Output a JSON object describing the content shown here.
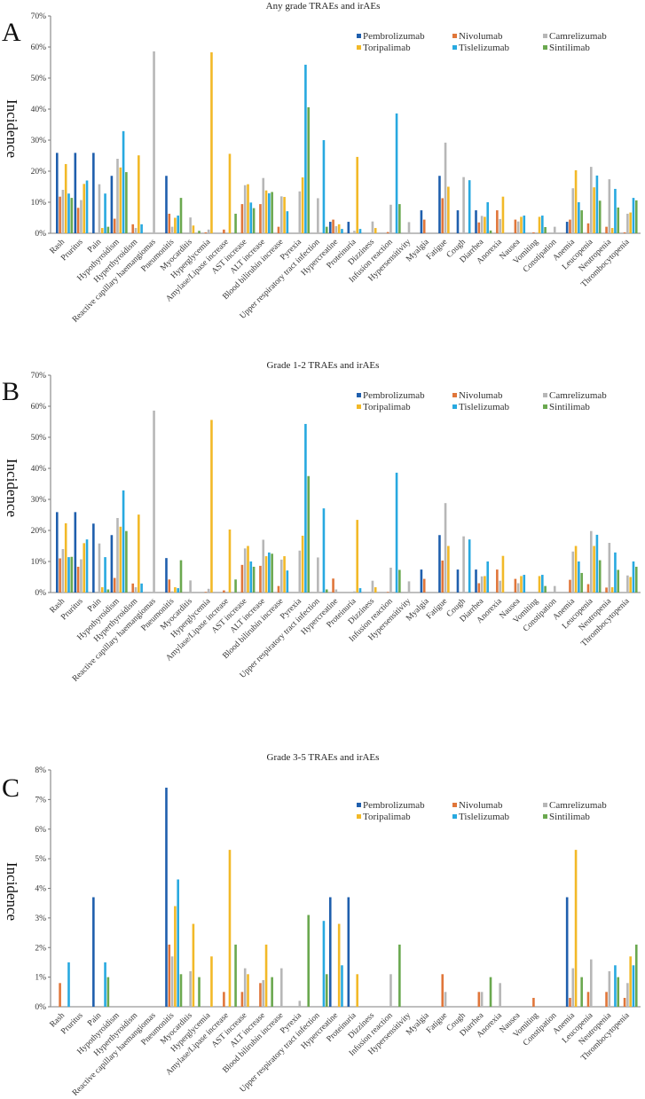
{
  "chart_data": [
    {
      "type": "bar",
      "panel": "A",
      "title": "Any grade TRAEs and irAEs",
      "xlabel": "",
      "ylabel": "Incidence",
      "ylim": [
        0,
        70
      ],
      "yticks": [
        "0%",
        "10%",
        "20%",
        "30%",
        "40%",
        "50%",
        "60%",
        "70%"
      ],
      "grid": false,
      "legend_position": "top-right",
      "categories": [
        "Rash",
        "Pruritus",
        "Pain",
        "Hypothyroidism",
        "Hyperthyroidism",
        "Reactive capillary haemangiomas",
        "Pneumonitis",
        "Myocarditis",
        "Hyperglycemia",
        "Amylase/Lipase increase",
        "AST increase",
        "ALT increase",
        "Blood bilirubin increase",
        "Pyrexia",
        "Upper respiratory tract infection",
        "Hypercreatine",
        "Proteinuria",
        "Dizziness",
        "Infusion reaction",
        "Hypersensitivity",
        "Myalgia",
        "Fatigue",
        "Cough",
        "Diarrhea",
        "Anorexia",
        "Nausea",
        "Vomiting",
        "Constipation",
        "Anemia",
        "Leucopenia",
        "Neutropenia",
        "Thrombocytopenia"
      ],
      "series": [
        {
          "name": "Pembrolizumab",
          "color": "#1f5fad",
          "values": [
            25.9,
            25.9,
            25.9,
            18.5,
            0,
            0,
            18.5,
            0,
            0,
            0,
            0,
            0,
            0,
            0,
            0,
            3.7,
            3.7,
            0,
            0,
            0,
            7.4,
            18.5,
            7.4,
            7.4,
            0,
            0,
            0,
            0,
            3.7,
            0,
            0,
            0
          ]
        },
        {
          "name": "Nivolumab",
          "color": "#e0763a",
          "values": [
            11.8,
            8.2,
            0,
            4.7,
            2.9,
            0,
            6.3,
            0,
            0.3,
            1.2,
            9.4,
            9.4,
            2.1,
            0,
            0,
            4.4,
            0,
            0,
            0.4,
            0,
            4.4,
            11.3,
            0,
            3.5,
            7.4,
            4.4,
            0.3,
            0,
            4.4,
            3.2,
            2.1,
            0.3
          ]
        },
        {
          "name": "Camrelizumab",
          "color": "#b7b7b7",
          "values": [
            14.0,
            10.7,
            15.8,
            24.0,
            1.7,
            58.6,
            2.1,
            5.1,
            1.2,
            0,
            15.5,
            17.8,
            11.9,
            13.5,
            11.3,
            2.3,
            0.8,
            3.8,
            9.2,
            3.6,
            0,
            29.2,
            18.1,
            5.6,
            4.6,
            3.8,
            0,
            2.1,
            14.5,
            21.4,
            17.4,
            6.3
          ]
        },
        {
          "name": "Toripalimab",
          "color": "#f2b928",
          "values": [
            22.3,
            15.9,
            1.7,
            21.2,
            25.1,
            0,
            5.0,
            2.5,
            58.3,
            25.6,
            15.8,
            13.8,
            11.7,
            18.0,
            0,
            2.9,
            24.6,
            1.7,
            0,
            0,
            0,
            15.0,
            0,
            5.3,
            11.8,
            5.3,
            5.3,
            0,
            20.3,
            14.8,
            1.7,
            6.7
          ]
        },
        {
          "name": "Tislelizumab",
          "color": "#28a9e0",
          "values": [
            12.8,
            17.0,
            12.8,
            32.9,
            2.9,
            0,
            5.7,
            0,
            0,
            0,
            9.9,
            12.9,
            7.1,
            54.3,
            30.0,
            1.4,
            1.4,
            0,
            38.6,
            0,
            0,
            0,
            17.1,
            10.0,
            0,
            5.7,
            5.7,
            0,
            10.0,
            18.6,
            14.3,
            11.4
          ]
        },
        {
          "name": "Sintilimab",
          "color": "#6aa84f",
          "values": [
            11.4,
            0,
            2.1,
            19.7,
            0,
            0,
            11.4,
            0.8,
            0,
            6.3,
            8.1,
            13.3,
            0,
            40.6,
            2.1,
            0,
            0,
            0,
            9.4,
            0,
            0,
            0,
            0,
            0.9,
            0,
            0,
            2.0,
            0,
            7.4,
            10.5,
            8.3,
            10.6
          ]
        }
      ]
    },
    {
      "type": "bar",
      "panel": "B",
      "title": "Grade 1-2 TRAEs and irAEs",
      "xlabel": "",
      "ylabel": "Incidence",
      "ylim": [
        0,
        70
      ],
      "yticks": [
        "0%",
        "10%",
        "20%",
        "30%",
        "40%",
        "50%",
        "60%",
        "70%"
      ],
      "grid": false,
      "legend_position": "top-right",
      "categories": [
        "Rash",
        "Pruritus",
        "Pain",
        "Hypothyroidism",
        "Hyperthyroidism",
        "Reactive capillary haemangiomas",
        "Pneumonitis",
        "Myocarditis",
        "Hyperglycemia",
        "Amylase/Lipase increase",
        "AST increase",
        "ALT increase",
        "Blood bilirubin increase",
        "Pyrexia",
        "Upper respiratory tract infection",
        "Hypercreatine",
        "Proteinuria",
        "Dizziness",
        "Infusion reaction",
        "Hypersensitivity",
        "Myalgia",
        "Fatigue",
        "Cough",
        "Diarrhea",
        "Anorexia",
        "Nausea",
        "Vomiting",
        "Constipation",
        "Anemia",
        "Leucopenia",
        "Neutropenia",
        "Thrombocytopenia"
      ],
      "series": [
        {
          "name": "Pembrolizumab",
          "color": "#1f5fad",
          "values": [
            25.9,
            25.9,
            22.2,
            18.5,
            0,
            0,
            11.1,
            0,
            0,
            0,
            0,
            0,
            0,
            0,
            0,
            0,
            0,
            0,
            0,
            0,
            7.4,
            18.5,
            7.4,
            7.4,
            0,
            0,
            0,
            0,
            0,
            0,
            0,
            0
          ]
        },
        {
          "name": "Nivolumab",
          "color": "#e0763a",
          "values": [
            11.0,
            8.3,
            0,
            4.7,
            2.9,
            0,
            4.2,
            0,
            0.2,
            0.7,
            8.9,
            8.6,
            2.1,
            0,
            0,
            4.5,
            0,
            0,
            0.2,
            0,
            4.4,
            10.3,
            0,
            3.0,
            7.4,
            4.4,
            0,
            0,
            4.1,
            2.7,
            1.6,
            0
          ]
        },
        {
          "name": "Camrelizumab",
          "color": "#b7b7b7",
          "values": [
            14.0,
            10.7,
            15.8,
            24.0,
            1.7,
            58.6,
            0.4,
            3.9,
            1.2,
            0,
            14.2,
            17.0,
            10.6,
            13.5,
            11.3,
            1.0,
            0.4,
            3.8,
            8.0,
            3.6,
            0,
            28.8,
            18.1,
            5.2,
            3.8,
            3.0,
            0,
            2.1,
            13.2,
            19.8,
            16.0,
            5.5
          ]
        },
        {
          "name": "Toripalimab",
          "color": "#f2b928",
          "values": [
            22.3,
            15.9,
            1.7,
            21.2,
            25.1,
            0,
            1.7,
            0,
            55.6,
            20.3,
            15.0,
            11.7,
            11.7,
            18.3,
            0,
            0,
            23.4,
            1.7,
            0,
            0,
            0,
            15.0,
            0,
            5.3,
            11.8,
            5.3,
            5.3,
            0,
            15.0,
            15.0,
            1.7,
            5.0
          ]
        },
        {
          "name": "Tislelizumab",
          "color": "#28a9e0",
          "values": [
            11.4,
            17.1,
            11.4,
            32.9,
            2.9,
            0,
            1.4,
            0,
            0,
            0,
            10.0,
            12.9,
            7.1,
            54.3,
            27.1,
            0,
            1.4,
            0,
            38.6,
            0,
            0,
            0,
            17.1,
            10.0,
            0,
            5.7,
            5.7,
            0,
            10.0,
            18.6,
            12.9,
            10.0
          ]
        },
        {
          "name": "Sintilimab",
          "color": "#6aa84f",
          "values": [
            11.5,
            0,
            1.0,
            19.8,
            0,
            0,
            10.4,
            0,
            0,
            4.2,
            8.3,
            12.5,
            0,
            37.5,
            1.0,
            0,
            0,
            0,
            7.3,
            0,
            0,
            0,
            0,
            0,
            0,
            0,
            2.1,
            0,
            6.3,
            10.4,
            7.3,
            8.3
          ]
        }
      ]
    },
    {
      "type": "bar",
      "panel": "C",
      "title": "Grade 3-5 TRAEs and irAEs",
      "xlabel": "",
      "ylabel": "Incidence",
      "ylim": [
        0,
        8
      ],
      "yticks": [
        "0%",
        "1%",
        "2%",
        "3%",
        "4%",
        "5%",
        "6%",
        "7%",
        "8%"
      ],
      "grid": false,
      "legend_position": "top-right",
      "categories": [
        "Rash",
        "Pruritus",
        "Pain",
        "Hypothyroidism",
        "Hyperthyroidism",
        "Reactive capillary haemangiomas",
        "Pneumonitis",
        "Myocarditis",
        "Hyperglycemia",
        "Amylase/Lipase increase",
        "AST increase",
        "ALT increase",
        "Blood bilirubin increase",
        "Pyrexia",
        "Upper respiratory tract infection",
        "Hypercreatine",
        "Proteinuria",
        "Dizziness",
        "Infusion reaction",
        "Hypersensitivity",
        "Myalgia",
        "Fatigue",
        "Cough",
        "Diarrhea",
        "Anorexia",
        "Nausea",
        "Vomiting",
        "Constipation",
        "Anemia",
        "Leucopenia",
        "Neutropenia",
        "Thrombocytopenia"
      ],
      "series": [
        {
          "name": "Pembrolizumab",
          "color": "#1f5fad",
          "values": [
            0,
            0,
            3.7,
            0,
            0,
            0,
            7.4,
            0,
            0,
            0,
            0,
            0,
            0,
            0,
            0,
            3.7,
            3.7,
            0,
            0,
            0,
            0,
            0,
            0,
            0,
            0,
            0,
            0,
            0,
            3.7,
            0,
            0,
            0
          ]
        },
        {
          "name": "Nivolumab",
          "color": "#e0763a",
          "values": [
            0.8,
            0,
            0,
            0,
            0,
            0,
            2.1,
            0,
            0,
            0.5,
            0.5,
            0.8,
            0,
            0,
            0,
            0,
            0,
            0,
            0,
            0,
            0,
            1.1,
            0,
            0.5,
            0,
            0,
            0.3,
            0,
            0.3,
            0.5,
            0.5,
            0.3
          ]
        },
        {
          "name": "Camrelizumab",
          "color": "#b7b7b7",
          "values": [
            0,
            0,
            0,
            0,
            0,
            0,
            1.7,
            1.2,
            0,
            0,
            1.3,
            0.9,
            1.3,
            0.2,
            0,
            0,
            0,
            0,
            1.1,
            0,
            0,
            0.5,
            0,
            0.5,
            0.8,
            0,
            0,
            0,
            1.3,
            1.6,
            1.2,
            0.8
          ]
        },
        {
          "name": "Toripalimab",
          "color": "#f2b928",
          "values": [
            0,
            0,
            0,
            0,
            0,
            0,
            3.4,
            2.8,
            1.7,
            5.3,
            1.1,
            2.1,
            0,
            0,
            0,
            2.8,
            1.1,
            0,
            0,
            0,
            0,
            0,
            0,
            0,
            0,
            0,
            0,
            0,
            5.3,
            0,
            0,
            1.7
          ]
        },
        {
          "name": "Tislelizumab",
          "color": "#28a9e0",
          "values": [
            1.5,
            0,
            1.5,
            0,
            0,
            0,
            4.3,
            0,
            0,
            0,
            0,
            0,
            0,
            0,
            2.9,
            1.4,
            0,
            0,
            0,
            0,
            0,
            0,
            0,
            0,
            0,
            0,
            0,
            0,
            0,
            0,
            1.4,
            1.4
          ]
        },
        {
          "name": "Sintilimab",
          "color": "#6aa84f",
          "values": [
            0,
            0,
            1.0,
            0,
            0,
            0,
            1.1,
            1.0,
            0,
            2.1,
            0,
            1.0,
            0,
            3.1,
            1.1,
            0,
            0,
            0,
            2.1,
            0,
            0,
            0,
            0,
            1.0,
            0,
            0,
            0,
            0,
            1.0,
            0,
            1.0,
            2.1
          ]
        }
      ]
    }
  ]
}
